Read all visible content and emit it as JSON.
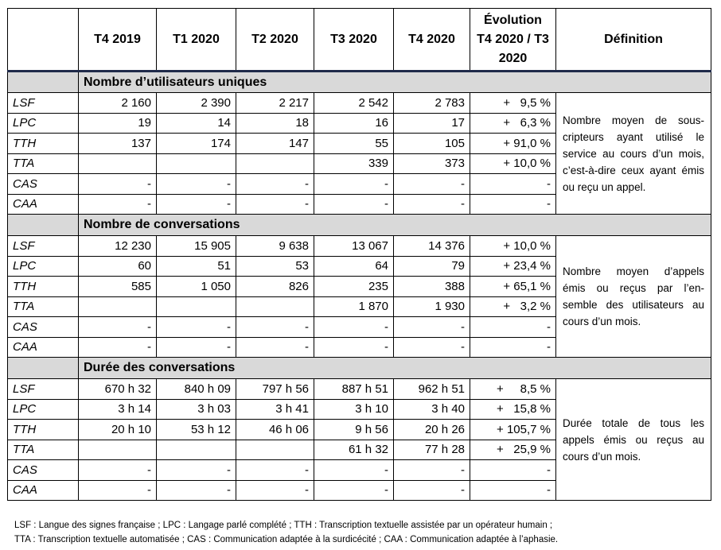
{
  "headers": [
    "",
    "T4 2019",
    "T1 2020",
    "T2 2020",
    "T3 2020",
    "T4 2020",
    "Évolution T4 2020 / T3 2020",
    "Définition"
  ],
  "sections": [
    {
      "title": "Nombre d’utilisateurs uniques",
      "definition": "Nombre moyen de sous-cripteurs ayant utilisé le service au cours d’un mois, c’est-à-dire ceux ayant émis ou reçu un appel.",
      "rows": [
        {
          "label": "LSF",
          "values": [
            "2 160",
            "2 390",
            "2 217",
            "2 542",
            "2 783"
          ],
          "evolution": "+   9,5 %"
        },
        {
          "label": "LPC",
          "values": [
            "19",
            "14",
            "18",
            "16",
            "17"
          ],
          "evolution": "+   6,3 %"
        },
        {
          "label": "TTH",
          "values": [
            "137",
            "174",
            "147",
            "55",
            "105"
          ],
          "evolution": "+ 91,0 %"
        },
        {
          "label": "TTA",
          "values": [
            "",
            "",
            "",
            "339",
            "373"
          ],
          "evolution": "+ 10,0 %"
        },
        {
          "label": "CAS",
          "values": [
            "-",
            "-",
            "-",
            "-",
            "-"
          ],
          "evolution": "-"
        },
        {
          "label": "CAA",
          "values": [
            "-",
            "-",
            "-",
            "-",
            "-"
          ],
          "evolution": "-"
        }
      ]
    },
    {
      "title": "Nombre de conversations",
      "definition": "Nombre moyen d’appels émis ou reçus par l’en-semble des utilisateurs au cours d’un mois.",
      "rows": [
        {
          "label": "LSF",
          "values": [
            "12 230",
            "15 905",
            "9 638",
            "13 067",
            "14 376"
          ],
          "evolution": "+ 10,0 %"
        },
        {
          "label": "LPC",
          "values": [
            "60",
            "51",
            "53",
            "64",
            "79"
          ],
          "evolution": "+ 23,4 %"
        },
        {
          "label": "TTH",
          "values": [
            "585",
            "1 050",
            "826",
            "235",
            "388"
          ],
          "evolution": "+ 65,1 %"
        },
        {
          "label": "TTA",
          "values": [
            "",
            "",
            "",
            "1 870",
            "1 930"
          ],
          "evolution": "+   3,2 %"
        },
        {
          "label": "CAS",
          "values": [
            "-",
            "-",
            "-",
            "-",
            "-"
          ],
          "evolution": "-"
        },
        {
          "label": "CAA",
          "values": [
            "-",
            "-",
            "-",
            "-",
            "-"
          ],
          "evolution": "-"
        }
      ]
    },
    {
      "title": "Durée des conversations",
      "definition": "Durée totale de tous les appels émis ou reçus au cours d’un mois.",
      "rows": [
        {
          "label": "LSF",
          "values": [
            "670 h 32",
            "840 h 09",
            "797 h 56",
            "887 h 51",
            "962 h 51"
          ],
          "evolution": "+     8,5 %"
        },
        {
          "label": "LPC",
          "values": [
            "3 h 14",
            "3 h 03",
            "3 h 41",
            "3 h 10",
            "3 h 40"
          ],
          "evolution": "+   15,8 %"
        },
        {
          "label": "TTH",
          "values": [
            "20 h 10",
            "53 h 12",
            "46 h 06",
            "9 h 56",
            "20 h 26"
          ],
          "evolution": "+ 105,7 %"
        },
        {
          "label": "TTA",
          "values": [
            "",
            "",
            "",
            "61 h 32",
            "77 h 28"
          ],
          "evolution": "+   25,9 %"
        },
        {
          "label": "CAS",
          "values": [
            "-",
            "-",
            "-",
            "-",
            "-"
          ],
          "evolution": "-"
        },
        {
          "label": "CAA",
          "values": [
            "-",
            "-",
            "-",
            "-",
            "-"
          ],
          "evolution": "-"
        }
      ]
    }
  ],
  "footnote": [
    "LSF : Langue des signes française ; LPC : Langage parlé complété ; TTH : Transcription textuelle assistée par un opérateur humain ;",
    "TTA : Transcription textuelle automatisée ; CAS : Communication adaptée à la surdicécité ; CAA : Communication adaptée à l’aphasie."
  ]
}
